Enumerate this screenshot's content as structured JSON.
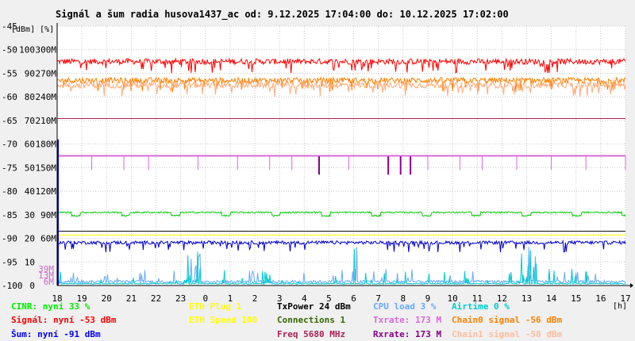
{
  "chart_data": {
    "type": "line",
    "title": "Signál a šum radia husova1437_ac od: 9.12.2025 17:04:00 do: 10.12.2025 17:02:00",
    "units_label": "[dBm] [%]",
    "xunit": "[h]",
    "xlim": [
      18,
      41
    ],
    "x_ticks": [
      {
        "x": 18,
        "label": "18"
      },
      {
        "x": 19,
        "label": "19"
      },
      {
        "x": 20,
        "label": "20"
      },
      {
        "x": 21,
        "label": "21"
      },
      {
        "x": 22,
        "label": "22"
      },
      {
        "x": 23,
        "label": "23"
      },
      {
        "x": 24,
        "label": "0"
      },
      {
        "x": 25,
        "label": "1"
      },
      {
        "x": 26,
        "label": "2"
      },
      {
        "x": 27,
        "label": "3"
      },
      {
        "x": 28,
        "label": "4"
      },
      {
        "x": 29,
        "label": "5"
      },
      {
        "x": 30,
        "label": "6"
      },
      {
        "x": 31,
        "label": "7"
      },
      {
        "x": 32,
        "label": "8"
      },
      {
        "x": 33,
        "label": "9"
      },
      {
        "x": 34,
        "label": "10"
      },
      {
        "x": 35,
        "label": "11"
      },
      {
        "x": 36,
        "label": "12"
      },
      {
        "x": 37,
        "label": "13"
      },
      {
        "x": 38,
        "label": "14"
      },
      {
        "x": 39,
        "label": "15"
      },
      {
        "x": 40,
        "label": "16"
      },
      {
        "x": 41,
        "label": "17"
      }
    ],
    "ylim": [
      -100,
      -45
    ],
    "y_ticks": [
      {
        "y": -45,
        "dbm": "-45",
        "pct": "",
        "rate": ""
      },
      {
        "y": -50,
        "dbm": "-50",
        "pct": "100",
        "rate": "300M"
      },
      {
        "y": -55,
        "dbm": "-55",
        "pct": "90",
        "rate": "270M"
      },
      {
        "y": -60,
        "dbm": "-60",
        "pct": "80",
        "rate": "240M"
      },
      {
        "y": -65,
        "dbm": "-65",
        "pct": "70",
        "rate": "210M"
      },
      {
        "y": -70,
        "dbm": "-70",
        "pct": "60",
        "rate": "180M"
      },
      {
        "y": -75,
        "dbm": "-75",
        "pct": "50",
        "rate": "150M"
      },
      {
        "y": -80,
        "dbm": "-80",
        "pct": "40",
        "rate": "120M"
      },
      {
        "y": -85,
        "dbm": "-85",
        "pct": "30",
        "rate": "90M"
      },
      {
        "y": -90,
        "dbm": "-90",
        "pct": "20",
        "rate": "60M"
      },
      {
        "y": -95,
        "dbm": "-95",
        "pct": "10",
        "rate": ""
      },
      {
        "y": -100,
        "dbm": "-100",
        "pct": "0",
        "rate": ""
      }
    ],
    "extra_rate_labels": [
      {
        "y": -96.5,
        "label": "39M",
        "color": "#cc66cc"
      },
      {
        "y": -97.8,
        "label": "13M",
        "color": "#cc66cc"
      },
      {
        "y": -99.2,
        "label": "6M",
        "color": "#cc66cc"
      }
    ],
    "series": [
      {
        "key": "signal",
        "color": "#ff0000",
        "base": -52.5,
        "noise": 1.2,
        "dip": -53.5
      },
      {
        "key": "chain0",
        "color": "#ff8000",
        "base": -56.5,
        "noise": 1.2,
        "dip": -57.5
      },
      {
        "key": "chain1",
        "color": "#ffaa77",
        "base": -57.5,
        "noise": 1.3,
        "dip": -58.5
      },
      {
        "key": "freq",
        "color": "#aa2255",
        "base": -64.6,
        "flat": true
      },
      {
        "key": "rxrate",
        "color": "#880088",
        "base": -72.5,
        "flat": true,
        "dips_x": [
          28.6,
          31.4,
          31.9,
          32.3
        ],
        "dip_to": -76.5
      },
      {
        "key": "txrate",
        "color": "#dd66dd",
        "base": -72.5,
        "flat": true,
        "dips_x": [
          19.4,
          20.7,
          21.7,
          23.7,
          25.3,
          26.6,
          27.5,
          29.8,
          33.0,
          34.3,
          35.2,
          36.6,
          38.0,
          39.4,
          41.0
        ],
        "dip_to": -75.5
      },
      {
        "key": "cinr",
        "color": "#00cc00",
        "base": -84.5,
        "noise": 0.3,
        "bumps": true
      },
      {
        "key": "eth_speed",
        "color": "#ffff00",
        "base": -89.3,
        "flat": true
      },
      {
        "key": "txpower",
        "color": "#000000",
        "base": -88.5,
        "flat": true
      },
      {
        "key": "noise_line",
        "color": "#0000cc",
        "base": -90.9,
        "noise": 0.7,
        "dip": -91.5
      },
      {
        "key": "cpu",
        "color": "#66aaff",
        "base": -99.2,
        "noise": 0.6,
        "spiky": true
      },
      {
        "key": "airtime",
        "color": "#00cccc",
        "base": -99.6,
        "noise": 0.2,
        "spiky": true
      }
    ],
    "legend": [
      {
        "col": 0,
        "row": 0,
        "text": "CINR: nyní 33 %",
        "color": "#00ee00"
      },
      {
        "col": 0,
        "row": 1,
        "text": "Signál: nyní -53 dBm",
        "color": "#ff0000"
      },
      {
        "col": 0,
        "row": 2,
        "text": "Šum: nyní -91 dBm",
        "color": "#0000ff"
      },
      {
        "col": 1,
        "row": 0,
        "text": "ETH Plug 1",
        "color": "#ffff00"
      },
      {
        "col": 1,
        "row": 1,
        "text": "ETH Speed 100",
        "color": "#ffff00"
      },
      {
        "col": 2,
        "row": 0,
        "text": "TxPower 24 dBm",
        "color": "#000000"
      },
      {
        "col": 2,
        "row": 1,
        "text": "Connections 1",
        "color": "#336600"
      },
      {
        "col": 2,
        "row": 2,
        "text": "Freq 5680 MHz",
        "color": "#aa2255"
      },
      {
        "col": 3,
        "row": 0,
        "text": "CPU load 3 %",
        "color": "#66aaff"
      },
      {
        "col": 3,
        "row": 1,
        "text": "Txrate: 173 M",
        "color": "#dd66dd"
      },
      {
        "col": 3,
        "row": 2,
        "text": "Rxrate: 173 M",
        "color": "#880088"
      },
      {
        "col": 4,
        "row": 0,
        "text": "Airtime 0 %",
        "color": "#00cccc"
      },
      {
        "col": 4,
        "row": 1,
        "text": "Chain0 signal -56 dBm",
        "color": "#ff8000"
      },
      {
        "col": 4,
        "row": 2,
        "text": "Chain1 signal -58 dBm",
        "color": "#ffbb99"
      }
    ]
  }
}
